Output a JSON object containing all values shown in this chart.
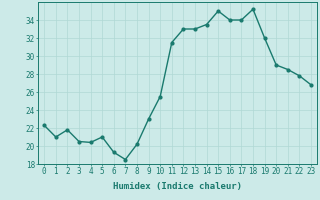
{
  "x": [
    0,
    1,
    2,
    3,
    4,
    5,
    6,
    7,
    8,
    9,
    10,
    11,
    12,
    13,
    14,
    15,
    16,
    17,
    18,
    19,
    20,
    21,
    22,
    23
  ],
  "y": [
    22.3,
    21.0,
    21.8,
    20.5,
    20.4,
    21.0,
    19.3,
    18.5,
    20.2,
    23.0,
    25.5,
    31.5,
    33.0,
    33.0,
    33.5,
    35.0,
    34.0,
    34.0,
    35.2,
    32.0,
    29.0,
    28.5,
    27.8,
    26.8
  ],
  "line_color": "#1a7a6e",
  "marker_color": "#1a7a6e",
  "bg_color": "#cceae8",
  "grid_color": "#b0d8d5",
  "xlabel": "Humidex (Indice chaleur)",
  "ylim": [
    18,
    36
  ],
  "xlim": [
    -0.5,
    23.5
  ],
  "yticks": [
    18,
    20,
    22,
    24,
    26,
    28,
    30,
    32,
    34
  ],
  "xticks": [
    0,
    1,
    2,
    3,
    4,
    5,
    6,
    7,
    8,
    9,
    10,
    11,
    12,
    13,
    14,
    15,
    16,
    17,
    18,
    19,
    20,
    21,
    22,
    23
  ],
  "xlabel_fontsize": 6.5,
  "tick_fontsize": 5.5,
  "linewidth": 1.0,
  "markersize": 2.0
}
